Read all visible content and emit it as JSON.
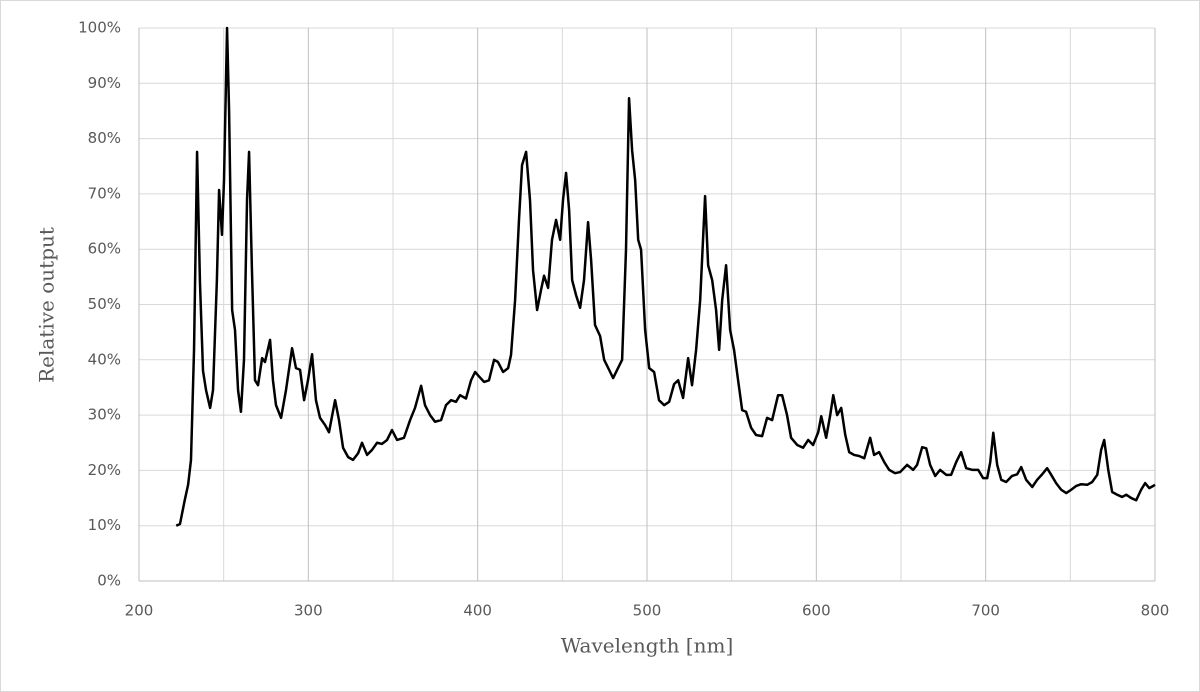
{
  "chart_data": {
    "type": "line",
    "x_label": "Wavelength [nm]",
    "y_label": "Relative output",
    "color": "#000000",
    "grid": true,
    "xlim": [
      200,
      800
    ],
    "ylim": [
      0,
      100
    ],
    "xticks": [
      200,
      300,
      400,
      500,
      600,
      700,
      800
    ],
    "xminor": [
      250,
      350,
      450,
      550,
      650,
      750
    ],
    "yticks": [
      {
        "value": 0,
        "label": "0%"
      },
      {
        "value": 10,
        "label": "10%"
      },
      {
        "value": 20,
        "label": "20%"
      },
      {
        "value": 30,
        "label": "30%"
      },
      {
        "value": 40,
        "label": "40%"
      },
      {
        "value": 50,
        "label": "50%"
      },
      {
        "value": 60,
        "label": "60%"
      },
      {
        "value": 70,
        "label": "70%"
      },
      {
        "value": 80,
        "label": "80%"
      },
      {
        "value": 90,
        "label": "90%"
      },
      {
        "value": 100,
        "label": "100%"
      }
    ],
    "x": [
      222,
      224.2,
      227,
      229,
      230.7,
      232.5,
      234.3,
      236,
      237.8,
      239.6,
      242,
      243.7,
      246,
      247.3,
      249,
      250.2,
      252,
      253.2,
      255,
      256.7,
      258.5,
      260.2,
      262,
      263.8,
      265,
      266.7,
      268.5,
      270.3,
      272.7,
      274.4,
      277.4,
      279.1,
      280.9,
      283.9,
      286.8,
      290.4,
      292.7,
      295.1,
      297.5,
      299.8,
      302.2,
      304.5,
      306.9,
      309.9,
      312.2,
      315.8,
      318.1,
      320.5,
      323.5,
      326.4,
      329.4,
      331.7,
      334.7,
      337.6,
      340.6,
      343.5,
      346.5,
      349.4,
      352.4,
      356.5,
      360.1,
      363,
      366.6,
      368.9,
      371.9,
      374.8,
      378.4,
      381.3,
      384.3,
      387.2,
      389.6,
      393.1,
      396.1,
      398.5,
      400.8,
      403.8,
      406.7,
      409.7,
      412,
      415,
      418,
      419.7,
      422.1,
      424.4,
      426.2,
      428.6,
      430.9,
      432.7,
      435.1,
      437.4,
      439.2,
      441.6,
      443.9,
      446.3,
      448.7,
      450.4,
      452.2,
      454,
      455.8,
      458.1,
      460.5,
      462.8,
      465.2,
      467,
      469.3,
      472.3,
      474.7,
      477.6,
      480,
      482.9,
      485.3,
      487.6,
      489.4,
      491.2,
      493,
      494.8,
      496.5,
      498.9,
      501.3,
      504.2,
      507.1,
      510.1,
      513.1,
      516,
      518.4,
      521.3,
      524.3,
      526.6,
      529,
      531.4,
      534.3,
      536.1,
      538.5,
      540.8,
      542.6,
      544.4,
      546.7,
      549.1,
      551.4,
      553.8,
      556.2,
      558.5,
      561.5,
      564.4,
      568,
      570.9,
      573.9,
      577.4,
      579.8,
      582.7,
      585.1,
      588.7,
      592.2,
      595.2,
      598.1,
      601.1,
      602.9,
      605.8,
      608.2,
      610,
      612.3,
      614.7,
      617.1,
      619.4,
      622.3,
      625.3,
      628.3,
      631.8,
      634.1,
      637.1,
      640.1,
      643,
      646.5,
      649.5,
      653.6,
      657.2,
      659.5,
      662.5,
      664.9,
      667.2,
      670.2,
      673.1,
      676.7,
      679.6,
      682.6,
      685.5,
      688.5,
      692,
      695.6,
      698.5,
      700.9,
      702.7,
      704.5,
      706.8,
      709.2,
      712.1,
      715.6,
      718.6,
      721,
      723.9,
      727.5,
      730.4,
      733.4,
      736.3,
      738.7,
      741.6,
      744.6,
      747.6,
      750.5,
      753.5,
      756.4,
      760,
      762.9,
      765.9,
      768.2,
      770,
      772.4,
      774.7,
      777.7,
      780.6,
      783,
      786,
      788.9,
      791.8,
      794.2,
      796.6,
      799,
      800
    ],
    "values": [
      10,
      10.3,
      14.6,
      17.4,
      21.9,
      41.8,
      77.6,
      54,
      38,
      34.5,
      31.3,
      34.5,
      54.4,
      70.7,
      62.6,
      72.5,
      100,
      85,
      49,
      45.4,
      34.5,
      30.6,
      40,
      68.9,
      77.6,
      56.2,
      36.3,
      35.4,
      40.3,
      39.6,
      43.6,
      36.3,
      31.8,
      29.5,
      34.5,
      42.1,
      38.5,
      38.2,
      32.7,
      36.3,
      41,
      32.7,
      29.5,
      28.2,
      26.9,
      32.7,
      29.1,
      24.1,
      22.4,
      21.9,
      23.1,
      25,
      22.8,
      23.7,
      25,
      24.8,
      25.5,
      27.3,
      25.5,
      25.9,
      29.1,
      31.3,
      35.3,
      31.8,
      30,
      28.8,
      29.1,
      31.8,
      32.7,
      32.4,
      33.6,
      33,
      36.3,
      37.8,
      37,
      36,
      36.3,
      40,
      39.6,
      37.8,
      38.5,
      40.9,
      50.8,
      65.3,
      75.2,
      77.6,
      68.9,
      56.2,
      49,
      52.6,
      55.2,
      53,
      61.7,
      65.3,
      61.7,
      68.9,
      73.8,
      67.1,
      54.4,
      51.7,
      49.4,
      54.4,
      64.9,
      58,
      46.3,
      44.3,
      40,
      38.2,
      36.7,
      38.5,
      40,
      59.9,
      87.3,
      77.9,
      72.5,
      61.7,
      59.9,
      45.4,
      38.5,
      37.8,
      32.7,
      31.8,
      32.4,
      35.6,
      36.3,
      33.1,
      40.3,
      35.4,
      41.8,
      50.8,
      69.6,
      57.1,
      54.4,
      49,
      41.8,
      50.8,
      57.1,
      45.4,
      41.8,
      36.3,
      30.9,
      30.6,
      27.7,
      26.4,
      26.2,
      29.5,
      29.1,
      33.6,
      33.6,
      30,
      25.9,
      24.6,
      24.1,
      25.5,
      24.6,
      26.9,
      29.8,
      25.9,
      30,
      33.6,
      30,
      31.3,
      26.4,
      23.3,
      22.8,
      22.6,
      22.2,
      25.9,
      22.8,
      23.3,
      21.5,
      20.1,
      19.5,
      19.7,
      21,
      20.1,
      21,
      24.2,
      24,
      21,
      19,
      20.1,
      19.2,
      19.2,
      21.5,
      23.3,
      20.4,
      20.1,
      20.1,
      18.6,
      18.6,
      21.5,
      26.8,
      21,
      18.3,
      17.9,
      19,
      19.3,
      20.6,
      18.3,
      17,
      18.3,
      19.3,
      20.4,
      19.2,
      17.7,
      16.5,
      15.9,
      16.5,
      17.2,
      17.5,
      17.4,
      17.9,
      19.2,
      23.7,
      25.5,
      20.1,
      16.1,
      15.6,
      15.2,
      15.6,
      15,
      14.6,
      16.5,
      17.7,
      16.8,
      17.2,
      17.4
    ]
  }
}
